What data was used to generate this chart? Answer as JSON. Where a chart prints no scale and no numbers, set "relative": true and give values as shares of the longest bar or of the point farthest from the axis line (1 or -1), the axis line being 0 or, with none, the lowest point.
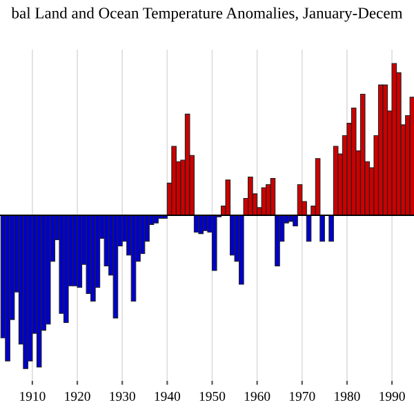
{
  "chart_data": {
    "type": "bar",
    "title": "bal Land and Ocean Temperature Anomalies, January-Decem",
    "relative": true,
    "x": [
      1903,
      1904,
      1905,
      1906,
      1907,
      1908,
      1909,
      1910,
      1911,
      1912,
      1913,
      1914,
      1915,
      1916,
      1917,
      1918,
      1919,
      1920,
      1921,
      1922,
      1923,
      1924,
      1925,
      1926,
      1927,
      1928,
      1929,
      1930,
      1931,
      1932,
      1933,
      1934,
      1935,
      1936,
      1937,
      1938,
      1939,
      1940,
      1941,
      1942,
      1943,
      1944,
      1945,
      1946,
      1947,
      1948,
      1949,
      1950,
      1951,
      1952,
      1953,
      1954,
      1955,
      1956,
      1957,
      1958,
      1959,
      1960,
      1961,
      1962,
      1963,
      1964,
      1965,
      1966,
      1967,
      1968,
      1969,
      1970,
      1971,
      1972,
      1973,
      1974,
      1975,
      1976,
      1977,
      1978,
      1979,
      1980,
      1981,
      1982,
      1983,
      1984,
      1985,
      1986,
      1987,
      1988,
      1989,
      1990,
      1991,
      1992,
      1993,
      1994
    ],
    "values": [
      -0.8,
      -0.95,
      -0.68,
      -0.5,
      -0.84,
      -1.0,
      -0.95,
      -0.77,
      -0.99,
      -0.75,
      -0.71,
      -0.3,
      -0.16,
      -0.64,
      -0.7,
      -0.46,
      -0.46,
      -0.47,
      -0.32,
      -0.51,
      -0.56,
      -0.47,
      -0.15,
      -0.33,
      -0.39,
      -0.67,
      -0.2,
      -0.17,
      -0.26,
      -0.56,
      -0.3,
      -0.25,
      -0.17,
      -0.06,
      -0.05,
      -0.02,
      -0.02,
      0.21,
      0.45,
      0.35,
      0.36,
      0.66,
      0.39,
      -0.11,
      -0.12,
      -0.1,
      -0.11,
      -0.36,
      -0.01,
      0.06,
      0.23,
      -0.26,
      -0.3,
      -0.45,
      0.11,
      0.25,
      0.14,
      0.05,
      0.18,
      0.2,
      0.24,
      -0.33,
      -0.17,
      -0.05,
      -0.04,
      -0.07,
      0.2,
      0.09,
      -0.17,
      0.06,
      0.37,
      -0.17,
      null,
      -0.17,
      0.45,
      0.4,
      0.52,
      0.6,
      0.7,
      0.42,
      0.79,
      0.35,
      0.31,
      0.52,
      0.85,
      0.85,
      0.68,
      0.99,
      0.93,
      0.59,
      0.65,
      0.77
    ],
    "colors": [
      "#0000cc",
      "#0000cc",
      "#0000cc",
      "#0000cc",
      "#0000cc",
      "#0000cc",
      "#0000cc",
      "#0000cc",
      "#0000cc",
      "#0000cc",
      "#0000cc",
      "#0000cc",
      "#0000cc",
      "#0000cc",
      "#0000cc",
      "#0000cc",
      "#0000cc",
      "#0000cc",
      "#0000cc",
      "#0000cc",
      "#0000cc",
      "#0000cc",
      "#0000cc",
      "#0000cc",
      "#0000cc",
      "#0000cc",
      "#0000cc",
      "#0000cc",
      "#0000cc",
      "#0000cc",
      "#0000cc",
      "#0000cc",
      "#0000cc",
      "#0000cc",
      "#0000cc",
      "#0000cc",
      "#0000cc",
      "#cc0000",
      "#cc0000",
      "#cc0000",
      "#cc0000",
      "#cc0000",
      "#cc0000",
      "#0000cc",
      "#0000cc",
      "#0000cc",
      "#0000cc",
      "#0000cc",
      "#0000cc",
      "#cc0000",
      "#cc0000",
      "#0000cc",
      "#0000cc",
      "#0000cc",
      "#cc0000",
      "#cc0000",
      "#cc0000",
      "#cc0000",
      "#cc0000",
      "#cc0000",
      "#cc0000",
      "#0000cc",
      "#0000cc",
      "#0000cc",
      "#0000cc",
      "#0000cc",
      "#cc0000",
      "#cc0000",
      "#0000cc",
      "#cc0000",
      "#cc0000",
      "#0000cc",
      "#0000cc",
      "#0000cc",
      "#cc0000",
      "#cc0000",
      "#cc0000",
      "#cc0000",
      "#cc0000",
      "#cc0000",
      "#cc0000",
      "#cc0000",
      "#cc0000",
      "#cc0000",
      "#cc0000",
      "#cc0000",
      "#cc0000",
      "#cc0000",
      "#cc0000",
      "#cc0000",
      "#cc0000",
      "#cc0000"
    ],
    "xlim": [
      1902.8,
      1994.9
    ],
    "xticks": [
      1910,
      1920,
      1930,
      1940,
      1950,
      1960,
      1970,
      1980,
      1990
    ],
    "grid": "x"
  }
}
